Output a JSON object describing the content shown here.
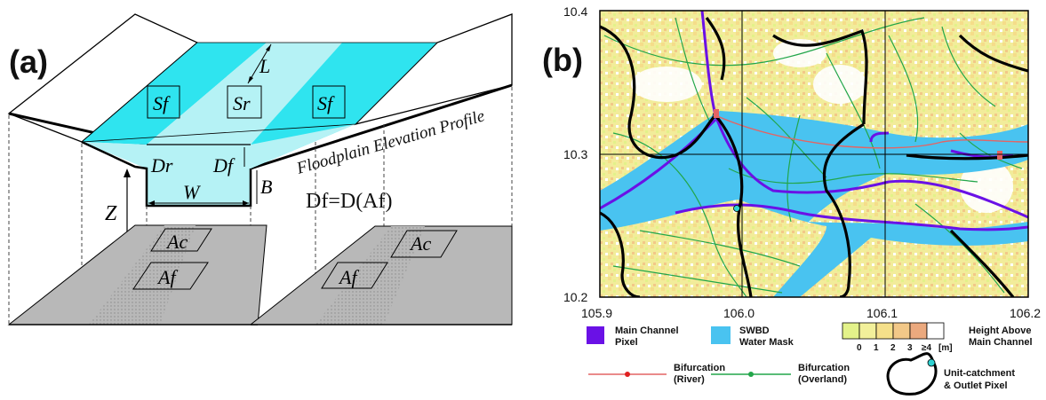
{
  "panel_a": {
    "label": "(a)",
    "L": "L",
    "Sf_left": "Sf",
    "Sr": "Sr",
    "Sf_right": "Sf",
    "Dr": "Dr",
    "Df": "Df",
    "B": "B",
    "W": "W",
    "Z": "Z",
    "profile_title": "Floodplain Elevation Profile",
    "equation": "Df=D(Af)",
    "Ac_left": "Ac",
    "Af_left": "Af",
    "Ac_right": "Ac",
    "Af_right": "Af"
  },
  "panel_b": {
    "label": "(b)",
    "y_ticks": [
      "10.4",
      "10.3",
      "10.2"
    ],
    "x_ticks": [
      "105.9",
      "106.0",
      "106.1",
      "106.2"
    ],
    "colors": {
      "main_channel": "#6a11e6",
      "water_mask": "#49c3f0",
      "bifurcation_river": "#e46464",
      "bifurcation_overland": "#22a64a",
      "catchment": "#000000",
      "outlet": "#2fd2d2",
      "height_scale": [
        "#e3f28a",
        "#f2f09a",
        "#f5e08a",
        "#f2c888",
        "#eba97e",
        "#ffffff"
      ]
    },
    "legend": {
      "main_channel_l1": "Main Channel",
      "main_channel_l2": "Pixel",
      "swbd_l1": "SWBD",
      "swbd_l2": "Water Mask",
      "height_ticks": [
        "0",
        "1",
        "2",
        "3",
        "≥4"
      ],
      "height_unit": "[m]",
      "height_l1": "Height Above",
      "height_l2": "Main Channel",
      "bif_river_l1": "Bifurcation",
      "bif_river_l2": "(River)",
      "bif_overland_l1": "Bifurcation",
      "bif_overland_l2": "(Overland)",
      "unit_l1": "Unit-catchment",
      "unit_l2": "& Outlet Pixel"
    }
  }
}
